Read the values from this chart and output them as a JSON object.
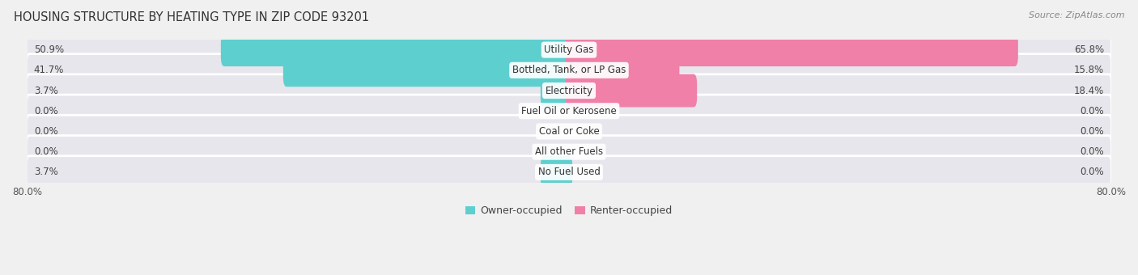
{
  "title": "HOUSING STRUCTURE BY HEATING TYPE IN ZIP CODE 93201",
  "source": "Source: ZipAtlas.com",
  "categories": [
    "Utility Gas",
    "Bottled, Tank, or LP Gas",
    "Electricity",
    "Fuel Oil or Kerosene",
    "Coal or Coke",
    "All other Fuels",
    "No Fuel Used"
  ],
  "owner_values": [
    50.9,
    41.7,
    3.7,
    0.0,
    0.0,
    0.0,
    3.7
  ],
  "renter_values": [
    65.8,
    15.8,
    18.4,
    0.0,
    0.0,
    0.0,
    0.0
  ],
  "owner_color": "#5ecfcf",
  "renter_color": "#f080a8",
  "owner_label": "Owner-occupied",
  "renter_label": "Renter-occupied",
  "xlim": 80.0,
  "row_bg_color": "#e6e6ec",
  "row_sep_color": "#ffffff",
  "title_fontsize": 10.5,
  "source_fontsize": 8,
  "value_fontsize": 8.5,
  "cat_fontsize": 8.5,
  "tick_fontsize": 8.5
}
